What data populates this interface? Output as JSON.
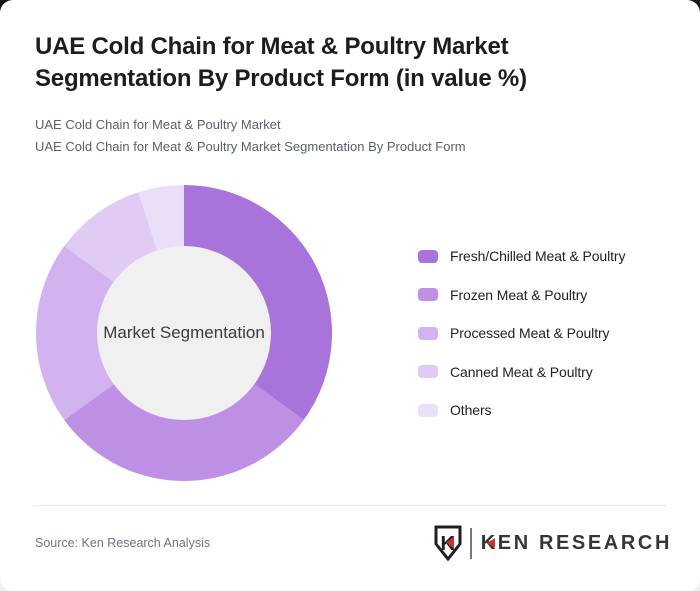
{
  "page": {
    "title": "UAE Cold Chain for Meat & Poultry Market\nSegmentation By Product Form (in value %)",
    "subtitles": [
      "UAE Cold Chain for Meat & Poultry Market",
      "UAE Cold Chain for Meat & Poultry Market Segmentation By Product Form"
    ]
  },
  "chart_data": {
    "type": "pie",
    "donut": true,
    "title": "UAE Cold Chain for Meat & Poultry Market Segmentation By Product Form (in value %)",
    "center_label": "Market Segmentation",
    "inner_radius_ratio": 0.59,
    "hole_color": "#f0f0f1",
    "legend_position": "right",
    "start_angle_deg": 0,
    "direction": "clockwise",
    "segments": [
      {
        "label": "Fresh/Chilled Meat & Poultry",
        "value": 35,
        "color": "#a873db"
      },
      {
        "label": "Frozen Meat & Poultry",
        "value": 30,
        "color": "#bd90e6"
      },
      {
        "label": "Processed Meat & Poultry",
        "value": 20,
        "color": "#d2b3ef"
      },
      {
        "label": "Canned Meat & Poultry",
        "value": 10,
        "color": "#dfcbf4"
      },
      {
        "label": "Others",
        "value": 5,
        "color": "#eadef8"
      }
    ]
  },
  "footer": {
    "source": "Source: Ken Research Analysis",
    "logo": {
      "mark_letter": "K",
      "text": "KEN RESEARCH",
      "accent_color": "#c0392b",
      "ink_color": "#1d1f21"
    }
  }
}
